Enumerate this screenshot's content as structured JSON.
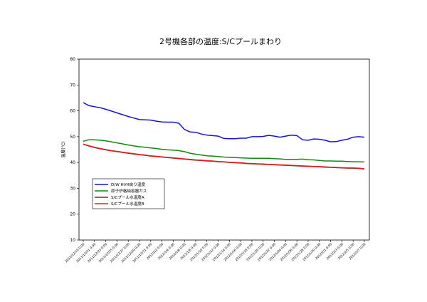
{
  "chart_data": {
    "type": "line",
    "title": "2号機各部の温度:S/Cプールまわり",
    "ylabel": "温度(℃)",
    "xlabel": "",
    "ylim": [
      10,
      80
    ],
    "yticks": [
      10,
      20,
      30,
      40,
      50,
      60,
      70,
      80
    ],
    "grid": false,
    "legend_position": "left-middle",
    "x_tick_labels": [
      "2011/12/19 0:00",
      "2011/12/21 0:00",
      "2011/12/23 0:00",
      "2011/12/25 0:00",
      "2011/12/27 0:00",
      "2011/12/29 0:00",
      "2011/12/31 0:00",
      "2012/1/2 0:00",
      "2012/1/4 0:00",
      "2012/1/6 0:00",
      "2012/1/8 0:00",
      "2012/1/10 0:00",
      "2012/1/12 0:00",
      "2012/1/14 0:00",
      "2012/1/16 0:00",
      "2012/1/18 0:00",
      "2012/1/20 0:00",
      "2012/1/22 0:00",
      "2012/1/24 0:00",
      "2012/1/26 0:00",
      "2012/1/28 0:00",
      "2012/1/30 0:00",
      "2012/2/1 0:00",
      "2012/2/3 0:00",
      "2012/2/5 0:00",
      "2012/2/7 0:00"
    ],
    "x_axis": {
      "start": "2011-12-19",
      "end": "2012-02-07"
    },
    "series": [
      {
        "name": "D/W HVH戻り温度",
        "color": "#1414d8",
        "points": [
          [
            "2011-12-19",
            63.2
          ],
          [
            "2011-12-20",
            62.0
          ],
          [
            "2011-12-21",
            61.6
          ],
          [
            "2011-12-22",
            61.2
          ],
          [
            "2011-12-23",
            60.6
          ],
          [
            "2011-12-24",
            59.9
          ],
          [
            "2011-12-25",
            59.2
          ],
          [
            "2011-12-26",
            58.5
          ],
          [
            "2011-12-27",
            57.8
          ],
          [
            "2011-12-28",
            57.2
          ],
          [
            "2011-12-29",
            56.6
          ],
          [
            "2011-12-30",
            56.5
          ],
          [
            "2011-12-31",
            56.4
          ],
          [
            "2012-01-01",
            56.0
          ],
          [
            "2012-01-02",
            55.7
          ],
          [
            "2012-01-03",
            55.6
          ],
          [
            "2012-01-04",
            55.6
          ],
          [
            "2012-01-05",
            55.2
          ],
          [
            "2012-01-06",
            52.8
          ],
          [
            "2012-01-07",
            51.8
          ],
          [
            "2012-01-08",
            51.7
          ],
          [
            "2012-01-09",
            51.0
          ],
          [
            "2012-01-10",
            50.6
          ],
          [
            "2012-01-11",
            50.4
          ],
          [
            "2012-01-12",
            50.2
          ],
          [
            "2012-01-13",
            49.3
          ],
          [
            "2012-01-14",
            49.2
          ],
          [
            "2012-01-15",
            49.2
          ],
          [
            "2012-01-16",
            49.4
          ],
          [
            "2012-01-17",
            49.4
          ],
          [
            "2012-01-18",
            50.0
          ],
          [
            "2012-01-19",
            50.0
          ],
          [
            "2012-01-20",
            50.1
          ],
          [
            "2012-01-21",
            50.5
          ],
          [
            "2012-01-22",
            50.2
          ],
          [
            "2012-01-23",
            49.8
          ],
          [
            "2012-01-24",
            50.2
          ],
          [
            "2012-01-25",
            50.6
          ],
          [
            "2012-01-26",
            50.4
          ],
          [
            "2012-01-27",
            48.8
          ],
          [
            "2012-01-28",
            48.6
          ],
          [
            "2012-01-29",
            49.1
          ],
          [
            "2012-01-30",
            49.0
          ],
          [
            "2012-01-31",
            48.6
          ],
          [
            "2012-02-01",
            48.0
          ],
          [
            "2012-02-02",
            48.1
          ],
          [
            "2012-02-03",
            48.6
          ],
          [
            "2012-02-04",
            49.0
          ],
          [
            "2012-02-05",
            49.8
          ],
          [
            "2012-02-06",
            50.0
          ],
          [
            "2012-02-07",
            49.8
          ]
        ]
      },
      {
        "name": "原子炉格納容器ガス",
        "color": "#128a12",
        "points": [
          [
            "2011-12-19",
            48.2
          ],
          [
            "2011-12-20",
            48.8
          ],
          [
            "2011-12-21",
            48.8
          ],
          [
            "2011-12-22",
            48.6
          ],
          [
            "2011-12-23",
            48.4
          ],
          [
            "2011-12-24",
            48.0
          ],
          [
            "2011-12-25",
            47.6
          ],
          [
            "2011-12-26",
            47.2
          ],
          [
            "2011-12-27",
            46.8
          ],
          [
            "2011-12-28",
            46.4
          ],
          [
            "2011-12-29",
            46.1
          ],
          [
            "2011-12-30",
            45.9
          ],
          [
            "2011-12-31",
            45.6
          ],
          [
            "2012-01-01",
            45.4
          ],
          [
            "2012-01-02",
            45.1
          ],
          [
            "2012-01-03",
            44.9
          ],
          [
            "2012-01-04",
            44.8
          ],
          [
            "2012-01-05",
            44.6
          ],
          [
            "2012-01-06",
            44.2
          ],
          [
            "2012-01-07",
            43.6
          ],
          [
            "2012-01-08",
            43.2
          ],
          [
            "2012-01-09",
            42.9
          ],
          [
            "2012-01-10",
            42.6
          ],
          [
            "2012-01-11",
            42.5
          ],
          [
            "2012-01-12",
            42.3
          ],
          [
            "2012-01-13",
            42.1
          ],
          [
            "2012-01-14",
            42.0
          ],
          [
            "2012-01-15",
            41.9
          ],
          [
            "2012-01-16",
            41.8
          ],
          [
            "2012-01-17",
            41.7
          ],
          [
            "2012-01-18",
            41.6
          ],
          [
            "2012-01-19",
            41.6
          ],
          [
            "2012-01-20",
            41.6
          ],
          [
            "2012-01-21",
            41.6
          ],
          [
            "2012-01-22",
            41.5
          ],
          [
            "2012-01-23",
            41.4
          ],
          [
            "2012-01-24",
            41.2
          ],
          [
            "2012-01-25",
            41.2
          ],
          [
            "2012-01-26",
            41.2
          ],
          [
            "2012-01-27",
            41.3
          ],
          [
            "2012-01-28",
            41.1
          ],
          [
            "2012-01-29",
            41.0
          ],
          [
            "2012-01-30",
            40.8
          ],
          [
            "2012-01-31",
            40.6
          ],
          [
            "2012-02-01",
            40.6
          ],
          [
            "2012-02-02",
            40.5
          ],
          [
            "2012-02-03",
            40.5
          ],
          [
            "2012-02-04",
            40.4
          ],
          [
            "2012-02-05",
            40.3
          ],
          [
            "2012-02-06",
            40.3
          ],
          [
            "2012-02-07",
            40.2
          ]
        ]
      },
      {
        "name": "S/Cプール水温度A",
        "color": "#7a2a1a",
        "points": [
          [
            "2011-12-19",
            47.0
          ],
          [
            "2011-12-20",
            46.4
          ],
          [
            "2011-12-21",
            45.8
          ],
          [
            "2011-12-22",
            45.3
          ],
          [
            "2011-12-23",
            44.9
          ],
          [
            "2011-12-24",
            44.5
          ],
          [
            "2011-12-25",
            44.2
          ],
          [
            "2011-12-26",
            43.9
          ],
          [
            "2011-12-27",
            43.6
          ],
          [
            "2011-12-28",
            43.3
          ],
          [
            "2011-12-29",
            43.0
          ],
          [
            "2011-12-30",
            42.8
          ],
          [
            "2011-12-31",
            42.5
          ],
          [
            "2012-01-01",
            42.3
          ],
          [
            "2012-01-02",
            42.1
          ],
          [
            "2012-01-03",
            41.9
          ],
          [
            "2012-01-04",
            41.7
          ],
          [
            "2012-01-05",
            41.5
          ],
          [
            "2012-01-06",
            41.3
          ],
          [
            "2012-01-07",
            41.1
          ],
          [
            "2012-01-08",
            40.9
          ],
          [
            "2012-01-09",
            40.8
          ],
          [
            "2012-01-10",
            40.6
          ],
          [
            "2012-01-11",
            40.5
          ],
          [
            "2012-01-12",
            40.3
          ],
          [
            "2012-01-13",
            40.2
          ],
          [
            "2012-01-14",
            40.0
          ],
          [
            "2012-01-15",
            39.9
          ],
          [
            "2012-01-16",
            39.8
          ],
          [
            "2012-01-17",
            39.6
          ],
          [
            "2012-01-18",
            39.5
          ],
          [
            "2012-01-19",
            39.4
          ],
          [
            "2012-01-20",
            39.3
          ],
          [
            "2012-01-21",
            39.2
          ],
          [
            "2012-01-22",
            39.1
          ],
          [
            "2012-01-23",
            39.0
          ],
          [
            "2012-01-24",
            38.9
          ],
          [
            "2012-01-25",
            38.8
          ],
          [
            "2012-01-26",
            38.7
          ],
          [
            "2012-01-27",
            38.6
          ],
          [
            "2012-01-28",
            38.5
          ],
          [
            "2012-01-29",
            38.4
          ],
          [
            "2012-01-30",
            38.3
          ],
          [
            "2012-01-31",
            38.2
          ],
          [
            "2012-02-01",
            38.1
          ],
          [
            "2012-02-02",
            38.0
          ],
          [
            "2012-02-03",
            37.9
          ],
          [
            "2012-02-04",
            37.8
          ],
          [
            "2012-02-05",
            37.8
          ],
          [
            "2012-02-06",
            37.7
          ],
          [
            "2012-02-07",
            37.5
          ]
        ]
      },
      {
        "name": "S/Cプール水温度B",
        "color": "#e02020",
        "points": [
          [
            "2011-12-19",
            47.1
          ],
          [
            "2011-12-20",
            46.5
          ],
          [
            "2011-12-21",
            45.9
          ],
          [
            "2011-12-22",
            45.4
          ],
          [
            "2011-12-23",
            45.0
          ],
          [
            "2011-12-24",
            44.6
          ],
          [
            "2011-12-25",
            44.3
          ],
          [
            "2011-12-26",
            44.0
          ],
          [
            "2011-12-27",
            43.7
          ],
          [
            "2011-12-28",
            43.4
          ],
          [
            "2011-12-29",
            43.1
          ],
          [
            "2011-12-30",
            42.9
          ],
          [
            "2011-12-31",
            42.6
          ],
          [
            "2012-01-01",
            42.4
          ],
          [
            "2012-01-02",
            42.2
          ],
          [
            "2012-01-03",
            42.0
          ],
          [
            "2012-01-04",
            41.8
          ],
          [
            "2012-01-05",
            41.6
          ],
          [
            "2012-01-06",
            41.4
          ],
          [
            "2012-01-07",
            41.2
          ],
          [
            "2012-01-08",
            41.0
          ],
          [
            "2012-01-09",
            40.9
          ],
          [
            "2012-01-10",
            40.7
          ],
          [
            "2012-01-11",
            40.6
          ],
          [
            "2012-01-12",
            40.4
          ],
          [
            "2012-01-13",
            40.3
          ],
          [
            "2012-01-14",
            40.1
          ],
          [
            "2012-01-15",
            40.0
          ],
          [
            "2012-01-16",
            39.9
          ],
          [
            "2012-01-17",
            39.7
          ],
          [
            "2012-01-18",
            39.6
          ],
          [
            "2012-01-19",
            39.5
          ],
          [
            "2012-01-20",
            39.4
          ],
          [
            "2012-01-21",
            39.3
          ],
          [
            "2012-01-22",
            39.2
          ],
          [
            "2012-01-23",
            39.1
          ],
          [
            "2012-01-24",
            39.0
          ],
          [
            "2012-01-25",
            38.9
          ],
          [
            "2012-01-26",
            38.8
          ],
          [
            "2012-01-27",
            38.7
          ],
          [
            "2012-01-28",
            38.6
          ],
          [
            "2012-01-29",
            38.5
          ],
          [
            "2012-01-30",
            38.4
          ],
          [
            "2012-01-31",
            38.3
          ],
          [
            "2012-02-01",
            38.2
          ],
          [
            "2012-02-02",
            38.1
          ],
          [
            "2012-02-03",
            38.0
          ],
          [
            "2012-02-04",
            37.9
          ],
          [
            "2012-02-05",
            37.9
          ],
          [
            "2012-02-06",
            37.8
          ],
          [
            "2012-02-07",
            37.6
          ]
        ]
      }
    ]
  }
}
